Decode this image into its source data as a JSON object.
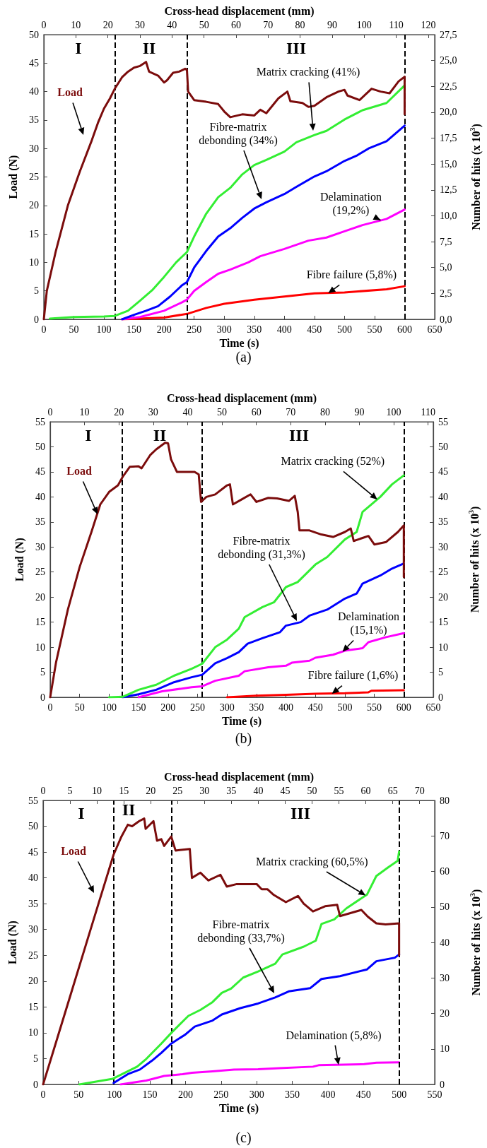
{
  "chart_data": [
    {
      "type": "line",
      "title": "(a)",
      "xlabel": "Time (s)",
      "x2label": "Cross-head displacement (mm)",
      "ylabel": "Load (N)",
      "y2label": "Number of hits (x 10$^{3}$)",
      "xlim": [
        0,
        650
      ],
      "xticks": [
        0,
        50,
        100,
        150,
        200,
        250,
        300,
        350,
        400,
        450,
        500,
        550,
        600,
        650
      ],
      "x2lim": [
        0,
        122
      ],
      "x2ticks": [
        0,
        10,
        20,
        30,
        40,
        50,
        60,
        70,
        80,
        90,
        100,
        110,
        120
      ],
      "ylim": [
        0,
        50
      ],
      "yticks": [
        0,
        5,
        10,
        15,
        20,
        25,
        30,
        35,
        40,
        45,
        50
      ],
      "y2lim": [
        0,
        27.5
      ],
      "y2ticks": [
        {
          "value": 0,
          "label": "0,0"
        },
        {
          "value": 2.5,
          "label": "2,5"
        },
        {
          "value": 5,
          "label": "5,0"
        },
        {
          "value": 7.5,
          "label": "7,5"
        },
        {
          "value": 10,
          "label": "10,0"
        },
        {
          "value": 12.5,
          "label": "12,5"
        },
        {
          "value": 15,
          "label": "15,0"
        },
        {
          "value": 17.5,
          "label": "17,5"
        },
        {
          "value": 20,
          "label": "20,0"
        },
        {
          "value": 22.5,
          "label": "22,5"
        },
        {
          "value": 25,
          "label": "25,0"
        },
        {
          "value": 27.5,
          "label": "27,5"
        }
      ],
      "grid": false,
      "marker": "none",
      "line_style": "solid",
      "series": [
        {
          "color": "#7b0c0c",
          "x": [
            0,
            5,
            20,
            40,
            60,
            80,
            90,
            100,
            110,
            118,
            130,
            140,
            150,
            160,
            170,
            175,
            190,
            200,
            205,
            215,
            225,
            235,
            238,
            240,
            250,
            270,
            290,
            300,
            310,
            330,
            350,
            360,
            370,
            390,
            405,
            410,
            430,
            440,
            450,
            470,
            490,
            500,
            505,
            525,
            545,
            560,
            575,
            590,
            600,
            600
          ],
          "values": [
            0,
            5,
            12,
            20,
            26,
            31.5,
            34.5,
            37,
            38.8,
            40.5,
            42.5,
            43.5,
            44.2,
            44.5,
            45.2,
            43.5,
            42.8,
            41.6,
            42,
            43.3,
            43.5,
            44,
            43.8,
            40,
            38.5,
            38.2,
            37.8,
            36.5,
            35.5,
            36,
            35.8,
            36.8,
            36.2,
            38.8,
            40,
            38.3,
            38,
            37.3,
            37.5,
            39,
            40,
            40.3,
            39.3,
            38.5,
            40.5,
            40,
            39.7,
            41.8,
            42.6,
            36
          ]
        },
        {
          "color": "#33ee33",
          "axis": "y2",
          "x": [
            10,
            50,
            100,
            118,
            140,
            160,
            180,
            200,
            220,
            238,
            250,
            270,
            290,
            310,
            330,
            350,
            370,
            400,
            420,
            450,
            470,
            500,
            530,
            570,
            600
          ],
          "values": [
            0.06,
            0.22,
            0.28,
            0.33,
            0.83,
            1.8,
            2.8,
            4.1,
            5.5,
            6.5,
            8.0,
            10.2,
            11.8,
            12.7,
            14.0,
            14.9,
            15.4,
            16.2,
            17.1,
            17.8,
            18.2,
            19.3,
            20.2,
            20.9,
            22.6
          ]
        },
        {
          "color": "#0000ff",
          "axis": "y2",
          "x": [
            130,
            150,
            170,
            190,
            210,
            230,
            238,
            250,
            270,
            290,
            310,
            330,
            350,
            370,
            400,
            420,
            450,
            470,
            500,
            520,
            540,
            570,
            600
          ],
          "values": [
            0,
            0.44,
            0.83,
            1.27,
            2.2,
            3.3,
            3.6,
            5.0,
            6.6,
            8.0,
            8.8,
            9.8,
            10.7,
            11.3,
            12.1,
            12.8,
            13.8,
            14.3,
            15.3,
            15.8,
            16.5,
            17.2,
            18.7
          ]
        },
        {
          "color": "#ff00ff",
          "axis": "y2",
          "x": [
            130,
            160,
            200,
            230,
            238,
            250,
            270,
            290,
            310,
            340,
            360,
            400,
            440,
            470,
            500,
            530,
            570,
            600
          ],
          "values": [
            0,
            0.22,
            0.83,
            1.65,
            1.9,
            2.75,
            3.6,
            4.4,
            4.8,
            5.5,
            6.1,
            6.8,
            7.6,
            7.9,
            8.5,
            9.1,
            9.7,
            10.6
          ]
        },
        {
          "color": "#ff0000",
          "axis": "y2",
          "x": [
            130,
            200,
            240,
            270,
            300,
            350,
            400,
            450,
            500,
            570,
            600
          ],
          "values": [
            0,
            0.17,
            0.55,
            1.1,
            1.5,
            1.9,
            2.2,
            2.5,
            2.6,
            2.9,
            3.2
          ]
        }
      ],
      "ref_lines": [
        {
          "axis": "x",
          "value": 118,
          "color": "#000000",
          "line_style": "dashed"
        },
        {
          "axis": "x",
          "value": 238,
          "color": "#000000",
          "line_style": "dashed"
        },
        {
          "axis": "x",
          "value": 600,
          "color": "#000000",
          "line_style": "dashed"
        }
      ],
      "annotations": [
        "III",
        "I",
        "II",
        "Load",
        "Matrix cracking (41%)",
        "Fibre-matrix debonding (34%)",
        {
          "text": "Delamination (19,2%)",
          "x": 560,
          "y": 17.4
        },
        {
          "text": "Fibre failure (5,8%)",
          "x": 473,
          "y": 4.6
        }
      ]
    },
    {
      "type": "line",
      "title": "(b)",
      "xlabel": "Time (s)",
      "x2label": "Cross-head displacement (mm)",
      "ylabel": "Load (N)",
      "y2label": "Number of hits (x 10$^{3}$)",
      "xlim": [
        0,
        650
      ],
      "xticks": [
        0,
        50,
        100,
        150,
        200,
        250,
        300,
        350,
        400,
        450,
        500,
        550,
        600,
        650
      ],
      "x2lim": [
        0,
        111.5
      ],
      "x2ticks": [
        0,
        10,
        20,
        30,
        40,
        50,
        60,
        70,
        80,
        90,
        100,
        110
      ],
      "ylim": [
        0,
        55
      ],
      "yticks": [
        0,
        5,
        10,
        15,
        20,
        25,
        30,
        35,
        40,
        45,
        50,
        55
      ],
      "y2lim": [
        0,
        55
      ],
      "y2ticks": [
        0,
        5,
        10,
        15,
        20,
        25,
        30,
        35,
        40,
        45,
        50,
        55
      ],
      "grid": false,
      "marker": "none",
      "line_style": "solid",
      "series": [
        {
          "color": "#7b0c0c",
          "x": [
            0,
            10,
            30,
            50,
            70,
            85,
            100,
            115,
            123,
            135,
            150,
            155,
            170,
            180,
            195,
            200,
            205,
            215,
            225,
            245,
            252,
            256,
            265,
            280,
            300,
            305,
            310,
            325,
            340,
            350,
            370,
            385,
            405,
            415,
            420,
            423,
            440,
            460,
            480,
            500,
            510,
            515,
            530,
            540,
            550,
            570,
            590,
            600,
            600
          ],
          "values": [
            0,
            7,
            17.5,
            26,
            33,
            38.5,
            41,
            42.3,
            44,
            46,
            46.1,
            45.7,
            48.4,
            49.5,
            50.8,
            50.7,
            47.5,
            45,
            45,
            45,
            44.5,
            39,
            40,
            40.5,
            42.3,
            42.5,
            38.5,
            39.5,
            40.5,
            39,
            39.8,
            39.7,
            39.2,
            40.2,
            37,
            33.3,
            33.3,
            32.5,
            32,
            33,
            33.7,
            31.2,
            31.8,
            32.2,
            30.5,
            31,
            33,
            34.3,
            24
          ]
        },
        {
          "color": "#33ee33",
          "axis": "y2",
          "x": [
            100,
            123,
            150,
            180,
            210,
            240,
            258,
            280,
            300,
            320,
            330,
            360,
            380,
            400,
            420,
            450,
            470,
            500,
            520,
            530,
            560,
            580,
            600
          ],
          "values": [
            0,
            0.1,
            1.5,
            2.5,
            4.3,
            5.7,
            6.7,
            10,
            11.5,
            13.7,
            16,
            18,
            19,
            22,
            23,
            26.5,
            28,
            31.5,
            33,
            37,
            40,
            42.5,
            44.3
          ]
        },
        {
          "color": "#0000ff",
          "axis": "y2",
          "x": [
            123,
            150,
            180,
            210,
            240,
            258,
            280,
            300,
            320,
            335,
            360,
            390,
            400,
            425,
            440,
            470,
            500,
            520,
            530,
            560,
            580,
            600
          ],
          "values": [
            0,
            0.6,
            1.5,
            3,
            4,
            4.5,
            6.8,
            7.8,
            9,
            10.7,
            11.8,
            13,
            14.3,
            15,
            16.3,
            17.5,
            19.7,
            20.7,
            22.7,
            24.3,
            25.7,
            26.7
          ]
        },
        {
          "color": "#ff00ff",
          "axis": "y2",
          "x": [
            150,
            190,
            240,
            258,
            280,
            320,
            330,
            370,
            400,
            410,
            440,
            450,
            480,
            500,
            530,
            540,
            570,
            600
          ],
          "values": [
            0,
            1.2,
            2,
            2.2,
            3.3,
            4.3,
            5.2,
            6,
            6.3,
            6.9,
            7.3,
            7.9,
            8.5,
            9.3,
            9.8,
            11,
            12,
            12.8
          ]
        },
        {
          "color": "#ff0000",
          "axis": "y2",
          "x": [
            300,
            350,
            400,
            450,
            500,
            540,
            545,
            600
          ],
          "values": [
            0,
            0.3,
            0.5,
            0.7,
            0.8,
            1,
            1.3,
            1.4
          ]
        }
      ],
      "ref_lines": [
        {
          "axis": "x",
          "value": 122,
          "color": "#000000",
          "line_style": "dashed"
        },
        {
          "axis": "x",
          "value": 258,
          "color": "#000000",
          "line_style": "dashed"
        },
        {
          "axis": "x",
          "value": 600,
          "color": "#000000",
          "line_style": "dashed"
        }
      ],
      "annotations": [
        "III",
        "I",
        "II",
        "Load",
        {
          "text": "Matrix cracking (52%)",
          "x": 555,
          "y": 39.5
        },
        "Fibre-matrix debonding (31,3%)",
        {
          "text": "Delamination (15,1%)",
          "x": 496,
          "y": 9.1
        },
        {
          "text": "Fibre failure (1,6%)",
          "x": 478,
          "y": 0.7
        }
      ]
    },
    {
      "type": "line",
      "title": "(c)",
      "xlabel": "Time (s)",
      "x2label": "Cross-head displacement (mm)",
      "ylabel": "Load (N)",
      "y2label": "Number of hits (x 10$^{3}$)",
      "xlim": [
        0,
        550
      ],
      "xticks": [
        0,
        50,
        100,
        150,
        200,
        250,
        300,
        350,
        400,
        450,
        500,
        550
      ],
      "x2lim": [
        0,
        72.8
      ],
      "x2ticks": [
        0,
        5,
        10,
        15,
        20,
        25,
        30,
        35,
        40,
        45,
        50,
        55,
        60,
        65,
        70
      ],
      "ylim": [
        0,
        55
      ],
      "yticks": [
        0,
        5,
        10,
        15,
        20,
        25,
        30,
        35,
        40,
        45,
        50,
        55
      ],
      "y2lim": [
        0,
        80
      ],
      "y2ticks": [
        0,
        10,
        20,
        30,
        40,
        50,
        60,
        70,
        80
      ],
      "grid": false,
      "marker": "none",
      "line_style": "solid",
      "series": [
        {
          "color": "#7b0c0c",
          "x": [
            0,
            20,
            40,
            60,
            80,
            99,
            110,
            119,
            125,
            135,
            142,
            144,
            155,
            160,
            166,
            170,
            180,
            186,
            206,
            209,
            221,
            232,
            249,
            258,
            272,
            300,
            307,
            315,
            324,
            341,
            358,
            366,
            379,
            396,
            413,
            417,
            447,
            456,
            468,
            481,
            500,
            500
          ],
          "values": [
            0,
            9,
            18,
            27,
            36,
            44.5,
            48,
            50.3,
            50,
            51,
            51.5,
            49.5,
            51,
            47.2,
            47.5,
            46.2,
            48,
            45.3,
            45.6,
            40,
            41,
            39.5,
            40.6,
            38.3,
            38.8,
            38.8,
            37.8,
            37.8,
            36.7,
            35.3,
            36.5,
            35,
            33.5,
            34.5,
            34.8,
            32.6,
            33.8,
            32.5,
            31.2,
            31,
            31.2,
            25
          ]
        },
        {
          "color": "#33ee33",
          "axis": "y2",
          "x": [
            51,
            98,
            111,
            132,
            145,
            166,
            180,
            204,
            221,
            238,
            251,
            264,
            281,
            302,
            326,
            336,
            366,
            383,
            391,
            409,
            426,
            455,
            468,
            485,
            498,
            500
          ],
          "values": [
            0,
            1.6,
            2.9,
            5,
            7.2,
            11.5,
            14.5,
            19.3,
            21,
            23.2,
            25.8,
            27,
            30.1,
            31.8,
            34,
            36.6,
            38.8,
            40.5,
            45.2,
            46.5,
            49.6,
            53.5,
            58.7,
            61.2,
            63,
            65.6
          ]
        },
        {
          "color": "#0000ff",
          "axis": "y2",
          "x": [
            99,
            119,
            136,
            153,
            166,
            180,
            200,
            213,
            238,
            251,
            277,
            302,
            326,
            345,
            375,
            391,
            417,
            455,
            468,
            494,
            500
          ],
          "values": [
            0.4,
            2.9,
            4.2,
            6.7,
            8.9,
            11.5,
            14.1,
            16.3,
            18,
            19.7,
            21.5,
            22.8,
            24.5,
            26.2,
            27.1,
            29.7,
            30.5,
            32.4,
            34.7,
            35.7,
            36.6
          ]
        },
        {
          "color": "#ff00ff",
          "axis": "y2",
          "x": [
            109,
            145,
            170,
            196,
            209,
            238,
            268,
            302,
            332,
            379,
            387,
            451,
            468,
            500
          ],
          "values": [
            0,
            1.1,
            2.4,
            2.9,
            3.3,
            3.7,
            4.2,
            4.3,
            4.6,
            5,
            5.4,
            5.7,
            6.1,
            6.2
          ]
        }
      ],
      "ref_lines": [
        {
          "axis": "x",
          "value": 99,
          "color": "#000000",
          "line_style": "dashed"
        },
        {
          "axis": "x",
          "value": 180,
          "color": "#000000",
          "line_style": "dashed"
        },
        {
          "axis": "x",
          "value": 500,
          "color": "#000000",
          "line_style": "dashed"
        }
      ],
      "annotations": [
        "III",
        "I",
        "II",
        "Load",
        {
          "text": "Matrix cracking (60,5%)",
          "x": 453,
          "y": 36.6
        },
        "Fibre-matrix debonding (33,7%)",
        {
          "text": "Delamination (5,8%)",
          "x": 415,
          "y": 3.8
        }
      ]
    }
  ]
}
